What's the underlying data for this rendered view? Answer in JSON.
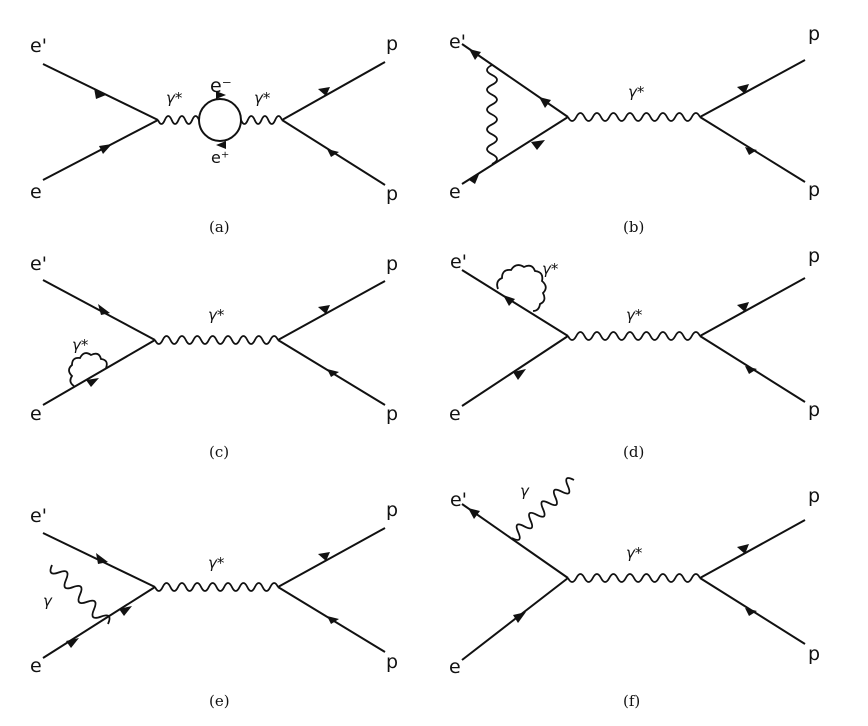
{
  "colors": {
    "ink": "#111111",
    "background": "#ffffff"
  },
  "diagrams": [
    {
      "id": "a",
      "caption": "(a)",
      "labels": {
        "out_lepton": "e'",
        "in_lepton": "e",
        "hadron_top": "p",
        "hadron_bottom": "p",
        "photon_left": "γ*",
        "photon_right": "γ*",
        "loop_top": "e⁻",
        "loop_bottom": "e⁺"
      }
    },
    {
      "id": "b",
      "caption": "(b)",
      "labels": {
        "out_lepton": "e'",
        "in_lepton": "e",
        "hadron_top": "p",
        "hadron_bottom": "p",
        "photon": "γ*"
      }
    },
    {
      "id": "c",
      "caption": "(c)",
      "labels": {
        "out_lepton": "e'",
        "in_lepton": "e",
        "hadron_top": "p",
        "hadron_bottom": "p",
        "photon": "γ*",
        "self_energy": "γ*"
      }
    },
    {
      "id": "d",
      "caption": "(d)",
      "labels": {
        "out_lepton": "e'",
        "in_lepton": "e",
        "hadron_top": "p",
        "hadron_bottom": "p",
        "photon": "γ*",
        "self_energy": "γ*"
      }
    },
    {
      "id": "e",
      "caption": "(e)",
      "labels": {
        "out_lepton": "e'",
        "in_lepton": "e",
        "hadron_top": "p",
        "hadron_bottom": "p",
        "photon": "γ*",
        "real_photon": "γ"
      }
    },
    {
      "id": "f",
      "caption": "(f)",
      "labels": {
        "out_lepton": "e'",
        "in_lepton": "e",
        "hadron_top": "p",
        "hadron_bottom": "p",
        "photon": "γ*",
        "real_photon": "γ"
      }
    }
  ]
}
